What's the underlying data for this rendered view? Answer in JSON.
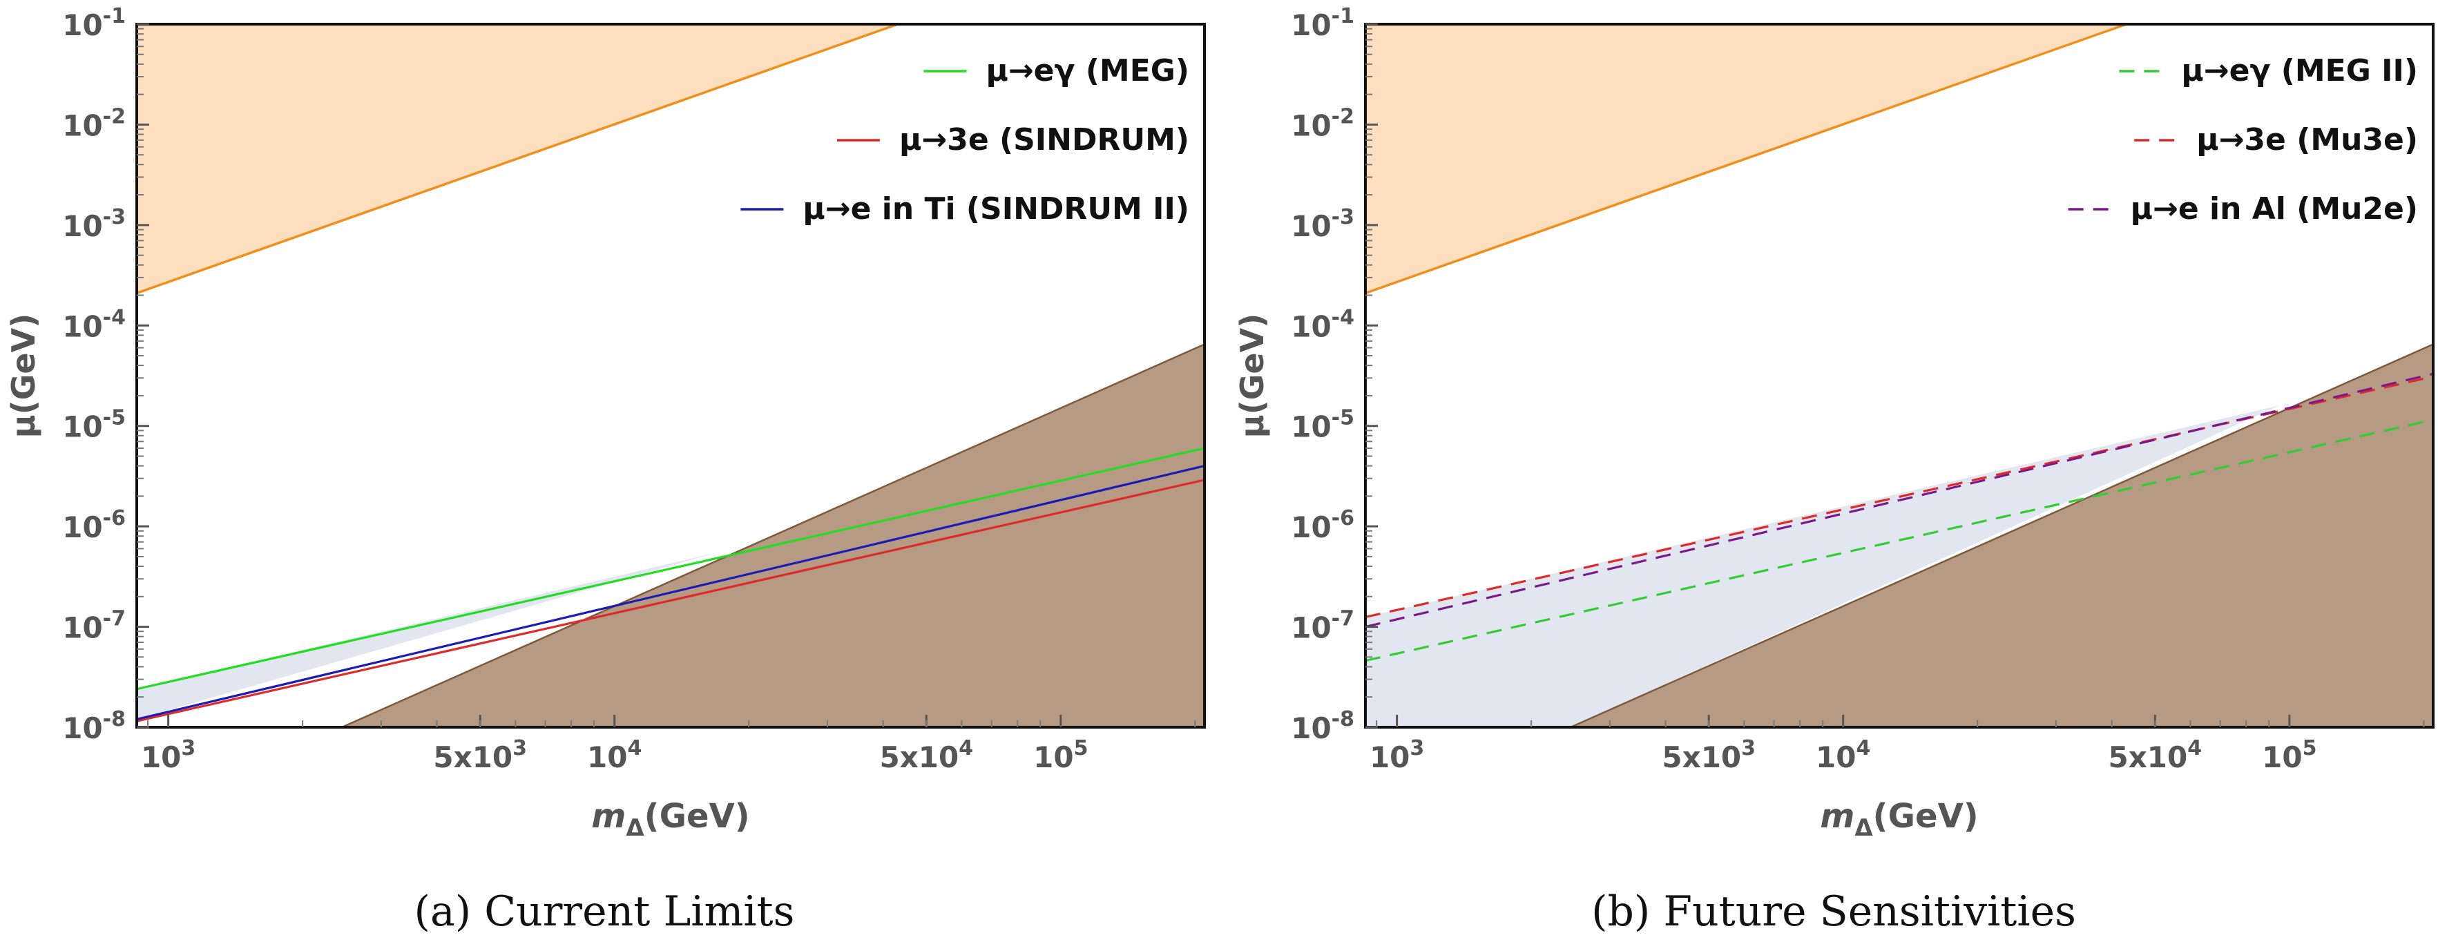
{
  "chart_data": [
    {
      "type": "line",
      "caption": "(a) Current Limits",
      "xlabel_main": "m",
      "xlabel_sub": "Δ",
      "xlabel_unit": "(GeV)",
      "ylabel": "μ(GeV)",
      "xscale": "log",
      "yscale": "log",
      "xlim": [
        850,
        210000
      ],
      "ylim": [
        1e-08,
        0.1
      ],
      "grid": false,
      "legend_position": "top-right",
      "x_ticks": [
        {
          "value": 1000,
          "label": "10",
          "sup": "3"
        },
        {
          "value": 5000,
          "label": "5x10",
          "sup": "3"
        },
        {
          "value": 10000,
          "label": "10",
          "sup": "4"
        },
        {
          "value": 50000,
          "label": "5x10",
          "sup": "4"
        },
        {
          "value": 100000,
          "label": "10",
          "sup": "5"
        }
      ],
      "y_ticks": [
        {
          "value": 1e-08,
          "label": "10",
          "sup": "-8"
        },
        {
          "value": 1e-07,
          "label": "10",
          "sup": "-7"
        },
        {
          "value": 1e-06,
          "label": "10",
          "sup": "-6"
        },
        {
          "value": 1e-05,
          "label": "10",
          "sup": "-5"
        },
        {
          "value": 0.0001,
          "label": "10",
          "sup": "-4"
        },
        {
          "value": 0.001,
          "label": "10",
          "sup": "-3"
        },
        {
          "value": 0.01,
          "label": "10",
          "sup": "-2"
        },
        {
          "value": 0.1,
          "label": "10",
          "sup": "-1"
        }
      ],
      "regions": [
        {
          "kind": "above",
          "x": [
            850,
            210000
          ],
          "y": [
            0.00021,
            1.2
          ],
          "fill": "#fddfc0",
          "stroke": "#f0901c"
        },
        {
          "kind": "below",
          "x": [
            2450,
            210000
          ],
          "y": [
            1e-08,
            6.5e-05
          ],
          "fill": "#b79a83",
          "stroke": "#7d5a3e"
        },
        {
          "kind": "band",
          "x": [
            850,
            17000
          ],
          "y_low": [
            1.2e-08,
            5.5e-07
          ],
          "y_high": [
            2.4e-08,
            5.5e-07
          ],
          "fill": "#e1e6f1"
        }
      ],
      "series": [
        {
          "name": "μ→eγ (MEG)",
          "x": [
            850,
            210000
          ],
          "y": [
            2.4e-08,
            6e-06
          ],
          "color": "#22dd22",
          "dash": "solid"
        },
        {
          "name": "μ→3e (SINDRUM)",
          "x": [
            850,
            210000
          ],
          "y": [
            1.15e-08,
            2.9e-06
          ],
          "color": "#dd2a2a",
          "dash": "solid"
        },
        {
          "name": "μ→e in Ti (SINDRUM II)",
          "x": [
            850,
            210000
          ],
          "y": [
            1.2e-08,
            4e-06
          ],
          "color": "#1c1cb4",
          "dash": "solid"
        }
      ]
    },
    {
      "type": "line",
      "caption": "(b) Future Sensitivities",
      "xlabel_main": "m",
      "xlabel_sub": "Δ",
      "xlabel_unit": "(GeV)",
      "ylabel": "μ(GeV)",
      "xscale": "log",
      "yscale": "log",
      "xlim": [
        850,
        210000
      ],
      "ylim": [
        1e-08,
        0.1
      ],
      "grid": false,
      "legend_position": "top-right",
      "x_ticks": [
        {
          "value": 1000,
          "label": "10",
          "sup": "3"
        },
        {
          "value": 5000,
          "label": "5x10",
          "sup": "3"
        },
        {
          "value": 10000,
          "label": "10",
          "sup": "4"
        },
        {
          "value": 50000,
          "label": "5x10",
          "sup": "4"
        },
        {
          "value": 100000,
          "label": "10",
          "sup": "5"
        }
      ],
      "y_ticks": [
        {
          "value": 1e-08,
          "label": "10",
          "sup": "-8"
        },
        {
          "value": 1e-07,
          "label": "10",
          "sup": "-7"
        },
        {
          "value": 1e-06,
          "label": "10",
          "sup": "-6"
        },
        {
          "value": 1e-05,
          "label": "10",
          "sup": "-5"
        },
        {
          "value": 0.0001,
          "label": "10",
          "sup": "-4"
        },
        {
          "value": 0.001,
          "label": "10",
          "sup": "-3"
        },
        {
          "value": 0.01,
          "label": "10",
          "sup": "-2"
        },
        {
          "value": 0.1,
          "label": "10",
          "sup": "-1"
        }
      ],
      "regions": [
        {
          "kind": "above",
          "x": [
            850,
            210000
          ],
          "y": [
            0.00021,
            1.2
          ],
          "fill": "#fddfc0",
          "stroke": "#f0901c"
        },
        {
          "kind": "below",
          "x": [
            2450,
            210000
          ],
          "y": [
            1e-08,
            6.5e-05
          ],
          "fill": "#b79a83",
          "stroke": "#7d5a3e"
        },
        {
          "kind": "band",
          "x": [
            850,
            95000
          ],
          "y_low": [
            1e-08,
            1.6e-05
          ],
          "y_high": [
            1.25e-07,
            1.6e-05
          ],
          "fill": "#e1e6f1",
          "low_start_x": 2450
        }
      ],
      "series": [
        {
          "name": "μ→eγ (MEG II)",
          "x": [
            850,
            210000
          ],
          "y": [
            4.6e-08,
            1.15e-05
          ],
          "color": "#33cc33",
          "dash": "dashed"
        },
        {
          "name": "μ→3e (Mu3e)",
          "x": [
            850,
            210000
          ],
          "y": [
            1.25e-07,
            3.1e-05
          ],
          "color": "#dd2a2a",
          "dash": "dashed"
        },
        {
          "name": "μ→e in Al (Mu2e)",
          "x": [
            850,
            210000
          ],
          "y": [
            1e-07,
            3.3e-05
          ],
          "color": "#7a1a8a",
          "dash": "dashed"
        }
      ]
    }
  ]
}
